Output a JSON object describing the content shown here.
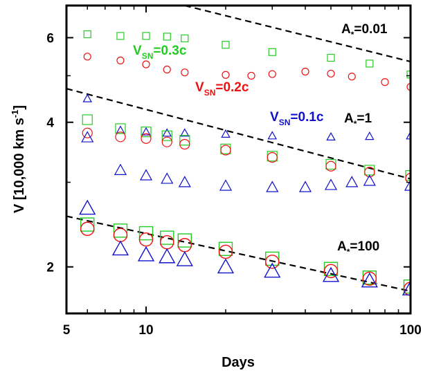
{
  "chart_data": {
    "type": "scatter",
    "xlabel": "Days",
    "ylabel": "V [10,000 km s",
    "ylabel_exp": "-1",
    "x_scale": "log",
    "y_scale": "log",
    "xlim": [
      5,
      100
    ],
    "ylim": [
      1.6,
      7.0
    ],
    "x_ticks": [
      5,
      10,
      100
    ],
    "x_tick_labels": [
      "5",
      "10",
      "100"
    ],
    "y_ticks": [
      2,
      4,
      6
    ],
    "y_tick_labels": [
      "2",
      "4",
      "6"
    ],
    "grid": false,
    "legend": "none",
    "colors": {
      "v03": "#22cc22",
      "v02": "#ee1111",
      "v01": "#1111cc",
      "guide": "#000000"
    },
    "annotations": [
      {
        "id": "v03",
        "main": "V",
        "sub": "SN",
        "rest": "=0.3c",
        "color": "#22cc22"
      },
      {
        "id": "v02",
        "main": "V",
        "sub": "SN",
        "rest": "=0.2c",
        "color": "#ee1111"
      },
      {
        "id": "v01",
        "main": "V",
        "sub": "SN",
        "rest": "=0.1c",
        "color": "#1111cc"
      },
      {
        "id": "a001",
        "main": "A",
        "sub": "*",
        "rest": "=0.01",
        "color": "#000000"
      },
      {
        "id": "a1",
        "main": "A",
        "sub": "*",
        "rest": "=1",
        "color": "#000000"
      },
      {
        "id": "a100",
        "main": "A",
        "sub": "*",
        "rest": "=100",
        "color": "#000000"
      }
    ],
    "guide_lines": [
      {
        "name": "A*=0.01 slope",
        "x": [
          14,
          100
        ],
        "y": [
          7.0,
          5.35
        ]
      },
      {
        "name": "A*=1 slope",
        "x": [
          5,
          100
        ],
        "y": [
          4.7,
          3.05
        ]
      },
      {
        "name": "A*=100 slope",
        "x": [
          5,
          100
        ],
        "y": [
          2.55,
          1.78
        ]
      }
    ],
    "series": [
      {
        "group": "A*=0.01",
        "speed": "0.3c",
        "marker": "square",
        "color": "#22cc22",
        "size": "small",
        "x": [
          6,
          8,
          10,
          12,
          14,
          20,
          30,
          50,
          70,
          100
        ],
        "y": [
          6.1,
          6.05,
          6.05,
          6.03,
          5.98,
          5.8,
          5.6,
          5.45,
          5.3,
          5.03
        ]
      },
      {
        "group": "A*=0.01",
        "speed": "0.2c",
        "marker": "circle",
        "color": "#ee1111",
        "size": "small",
        "x": [
          6,
          8,
          10,
          12,
          14,
          20,
          25,
          30,
          40,
          50,
          60,
          80,
          100
        ],
        "y": [
          5.48,
          5.38,
          5.28,
          5.15,
          5.08,
          5.02,
          5.0,
          5.04,
          5.1,
          5.05,
          4.98,
          4.85,
          4.74
        ]
      },
      {
        "group": "A*=1",
        "speed": "0.1c",
        "marker": "triangle",
        "color": "#1111cc",
        "size": "small",
        "x": [
          6,
          8,
          10,
          12,
          14,
          20,
          30,
          50,
          70,
          100
        ],
        "y": [
          4.48,
          3.85,
          3.82,
          3.8,
          3.8,
          3.78,
          3.75,
          3.73,
          3.74,
          3.75
        ]
      },
      {
        "group": "A*=1",
        "speed": "0.3c",
        "marker": "square",
        "color": "#22cc22",
        "size": "medium",
        "x": [
          6,
          8,
          10,
          12,
          14,
          20,
          30,
          50,
          70,
          100
        ],
        "y": [
          4.05,
          3.88,
          3.82,
          3.75,
          3.67,
          3.52,
          3.4,
          3.27,
          3.18,
          3.1
        ]
      },
      {
        "group": "A*=1",
        "speed": "0.2c",
        "marker": "circle",
        "color": "#ee1111",
        "size": "medium",
        "x": [
          6,
          8,
          10,
          12,
          14,
          20,
          30,
          50,
          70,
          100
        ],
        "y": [
          3.8,
          3.73,
          3.7,
          3.64,
          3.6,
          3.5,
          3.38,
          3.24,
          3.15,
          3.06
        ]
      },
      {
        "group": "A*=1",
        "speed": "0.1c",
        "marker": "triangle",
        "color": "#1111cc",
        "size": "medium",
        "x": [
          6,
          8,
          10,
          12,
          14,
          20,
          30,
          40,
          50,
          60,
          70,
          100
        ],
        "y": [
          3.72,
          3.18,
          3.1,
          3.05,
          3.0,
          2.95,
          2.93,
          2.93,
          2.96,
          3.0,
          3.02,
          2.95
        ]
      },
      {
        "group": "A*=100",
        "speed": "0.3c",
        "marker": "square",
        "color": "#22cc22",
        "size": "large",
        "x": [
          6,
          8,
          10,
          12,
          14,
          20,
          30,
          50,
          70,
          100
        ],
        "y": [
          2.45,
          2.38,
          2.35,
          2.3,
          2.27,
          2.18,
          2.08,
          1.98,
          1.9,
          1.82
        ]
      },
      {
        "group": "A*=100",
        "speed": "0.2c",
        "marker": "circle",
        "color": "#ee1111",
        "size": "large",
        "x": [
          6,
          8,
          10,
          12,
          14,
          20,
          30,
          50,
          70,
          100
        ],
        "y": [
          2.4,
          2.33,
          2.28,
          2.25,
          2.22,
          2.15,
          2.05,
          1.96,
          1.89,
          1.8
        ]
      },
      {
        "group": "A*=100",
        "speed": "0.1c",
        "marker": "triangle",
        "color": "#1111cc",
        "size": "large",
        "x": [
          6,
          8,
          10,
          12,
          14,
          20,
          30,
          50,
          70,
          100
        ],
        "y": [
          2.65,
          2.18,
          2.12,
          2.1,
          2.07,
          2.0,
          1.96,
          1.92,
          1.87,
          1.8
        ]
      }
    ]
  }
}
